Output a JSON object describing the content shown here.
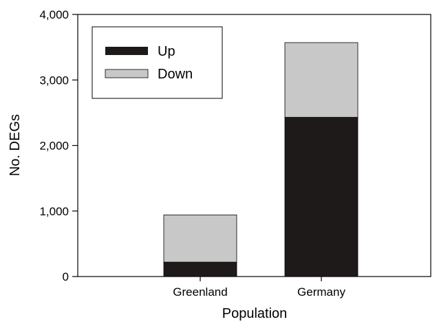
{
  "chart_data": {
    "type": "bar",
    "stacked": true,
    "categories": [
      "Greenland",
      "Germany"
    ],
    "series": [
      {
        "name": "Up",
        "values": [
          220,
          2430
        ],
        "color": "#1f1a1a"
      },
      {
        "name": "Down",
        "values": [
          720,
          1140
        ],
        "color": "#c8c8c8"
      }
    ],
    "totals": [
      940,
      3570
    ],
    "title": "",
    "xlabel": "Population",
    "ylabel": "No. DEGs",
    "ylim": [
      0,
      4000
    ],
    "yticks": [
      0,
      1000,
      2000,
      3000,
      4000
    ],
    "ytick_labels": [
      "0",
      "1,000",
      "2,000",
      "3,000",
      "4,000"
    ],
    "grid": false,
    "legend_position": "top-left"
  }
}
